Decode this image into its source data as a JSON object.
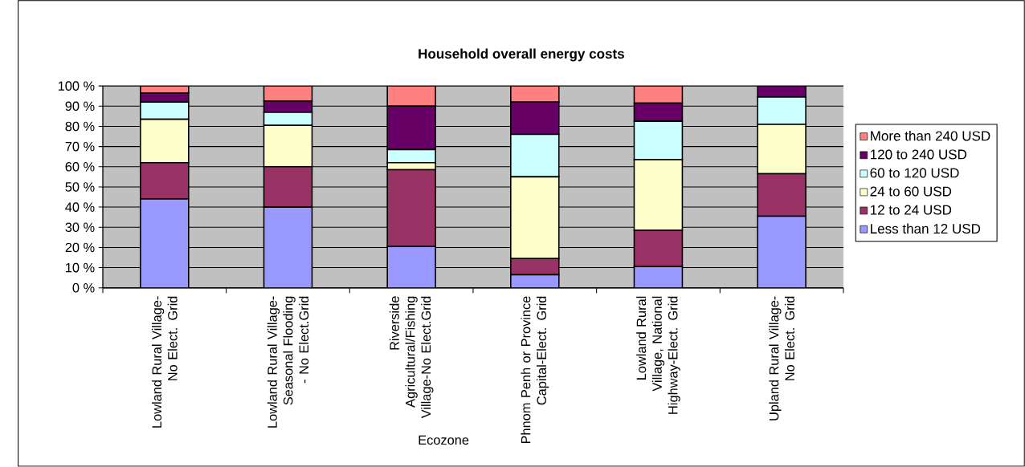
{
  "chart_data": {
    "type": "bar",
    "stacked": true,
    "title": "Household overall energy costs",
    "xlabel": "Ecozone",
    "categories": [
      "Lowland Rural Village-No Elect. Grid",
      "Lowland Rural Village-Seasonal Flooding - No Elect.Grid",
      "Riverside Agricultural/Fishing Village-No Elect.Grid",
      "Phnom Penh or Province Capital-Elect. Grid",
      "Lowland Rural Village, National Highway-Elect. Grid",
      "Upland Rural Village-No Elect. Grid"
    ],
    "series": [
      {
        "name": "Less than 12 USD",
        "color": "#9999ff",
        "values": [
          44,
          40,
          20.5,
          6.5,
          10.5,
          35.5
        ]
      },
      {
        "name": "12 to 24 USD",
        "color": "#993366",
        "values": [
          18,
          20,
          38,
          8,
          18,
          21
        ]
      },
      {
        "name": "24 to 60 USD",
        "color": "#ffffcc",
        "values": [
          21.5,
          20.5,
          3.5,
          40.5,
          35,
          24.5
        ]
      },
      {
        "name": "60 to 120 USD",
        "color": "#ccffff",
        "values": [
          8.5,
          6.5,
          6.5,
          21,
          19,
          13.5
        ]
      },
      {
        "name": "120 to 240 USD",
        "color": "#660066",
        "values": [
          4.5,
          5.5,
          21.5,
          16,
          9,
          5.5
        ]
      },
      {
        "name": "More than 240 USD",
        "color": "#ff8080",
        "values": [
          3.5,
          7.5,
          10,
          8,
          8.5,
          0
        ]
      }
    ],
    "ylim": [
      0,
      100
    ],
    "yticks": [
      {
        "value": 0,
        "label": "0 %"
      },
      {
        "value": 10,
        "label": "10 %"
      },
      {
        "value": 20,
        "label": "20 %"
      },
      {
        "value": 30,
        "label": "30 %"
      },
      {
        "value": 40,
        "label": "40 %"
      },
      {
        "value": 50,
        "label": "50 %"
      },
      {
        "value": 60,
        "label": "60 %"
      },
      {
        "value": 70,
        "label": "70 %"
      },
      {
        "value": 80,
        "label": "80 %"
      },
      {
        "value": 90,
        "label": "90 %"
      },
      {
        "value": 100,
        "label": "100 %"
      }
    ],
    "grid": "y",
    "legend": "right"
  }
}
